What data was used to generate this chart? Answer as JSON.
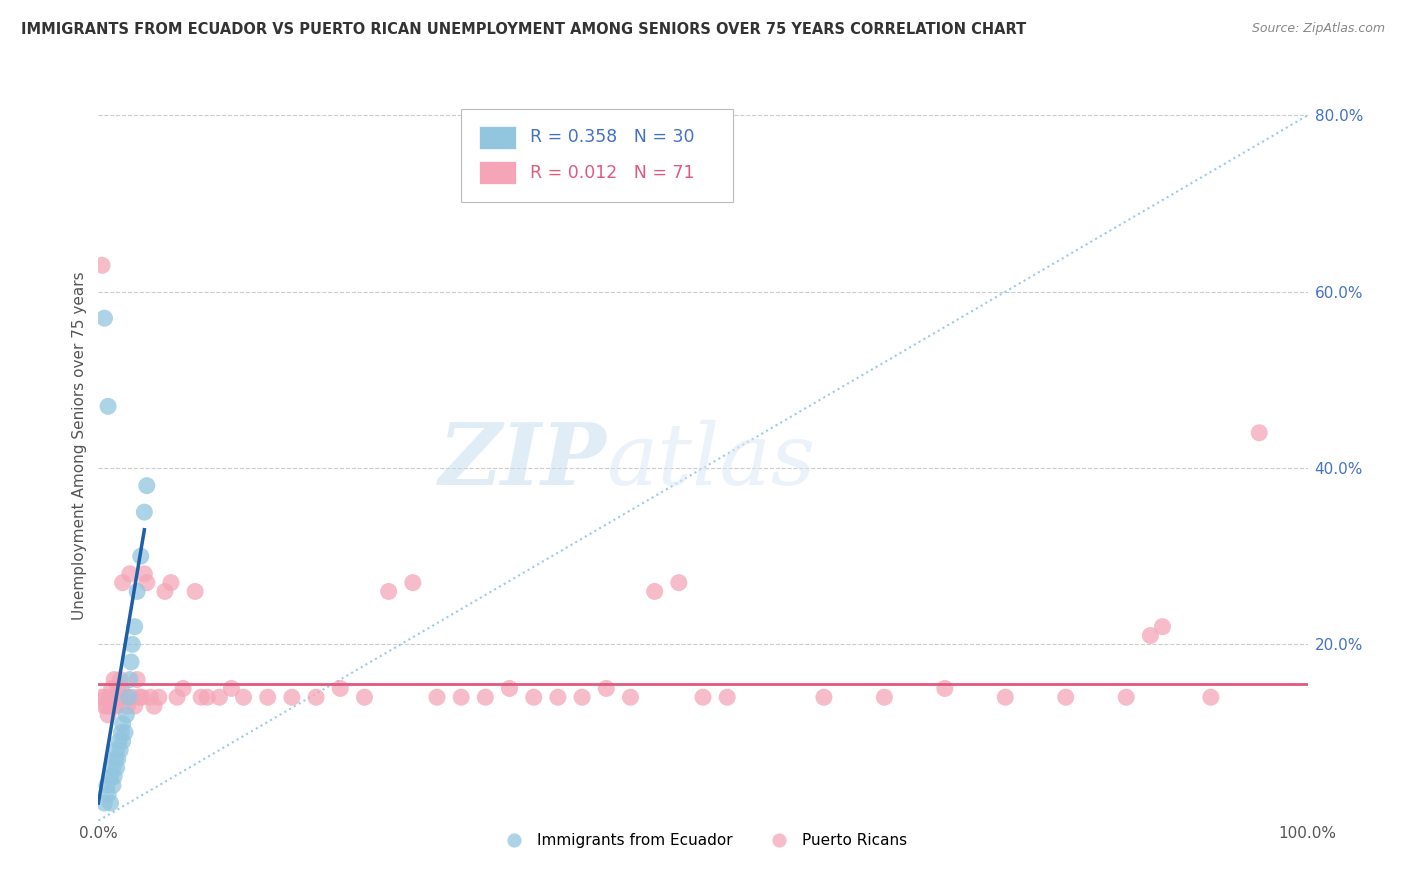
{
  "title": "IMMIGRANTS FROM ECUADOR VS PUERTO RICAN UNEMPLOYMENT AMONG SENIORS OVER 75 YEARS CORRELATION CHART",
  "source": "Source: ZipAtlas.com",
  "ylabel": "Unemployment Among Seniors over 75 years",
  "legend_blue_R": "0.358",
  "legend_blue_N": "30",
  "legend_pink_R": "0.012",
  "legend_pink_N": "71",
  "legend_blue_label": "Immigrants from Ecuador",
  "legend_pink_label": "Puerto Ricans",
  "blue_color": "#92c5de",
  "pink_color": "#f4a6b8",
  "blue_line_color": "#1f5fa6",
  "pink_line_color": "#e05a80",
  "diagonal_color": "#92c5de",
  "watermark_zip": "ZIP",
  "watermark_atlas": "atlas",
  "blue_dots": [
    [
      0.005,
      0.02
    ],
    [
      0.007,
      0.04
    ],
    [
      0.008,
      0.03
    ],
    [
      0.01,
      0.02
    ],
    [
      0.01,
      0.05
    ],
    [
      0.012,
      0.04
    ],
    [
      0.012,
      0.06
    ],
    [
      0.013,
      0.05
    ],
    [
      0.014,
      0.07
    ],
    [
      0.015,
      0.06
    ],
    [
      0.015,
      0.08
    ],
    [
      0.016,
      0.07
    ],
    [
      0.017,
      0.09
    ],
    [
      0.018,
      0.08
    ],
    [
      0.019,
      0.1
    ],
    [
      0.02,
      0.09
    ],
    [
      0.02,
      0.11
    ],
    [
      0.022,
      0.1
    ],
    [
      0.023,
      0.12
    ],
    [
      0.025,
      0.14
    ],
    [
      0.026,
      0.16
    ],
    [
      0.027,
      0.18
    ],
    [
      0.028,
      0.2
    ],
    [
      0.03,
      0.22
    ],
    [
      0.032,
      0.26
    ],
    [
      0.035,
      0.3
    ],
    [
      0.038,
      0.35
    ],
    [
      0.04,
      0.38
    ],
    [
      0.005,
      0.57
    ],
    [
      0.008,
      0.47
    ]
  ],
  "pink_dots": [
    [
      0.003,
      0.14
    ],
    [
      0.005,
      0.13
    ],
    [
      0.006,
      0.14
    ],
    [
      0.007,
      0.13
    ],
    [
      0.008,
      0.12
    ],
    [
      0.009,
      0.14
    ],
    [
      0.01,
      0.13
    ],
    [
      0.011,
      0.15
    ],
    [
      0.012,
      0.13
    ],
    [
      0.013,
      0.16
    ],
    [
      0.014,
      0.14
    ],
    [
      0.015,
      0.13
    ],
    [
      0.016,
      0.15
    ],
    [
      0.017,
      0.14
    ],
    [
      0.018,
      0.16
    ],
    [
      0.019,
      0.15
    ],
    [
      0.02,
      0.27
    ],
    [
      0.022,
      0.14
    ],
    [
      0.024,
      0.13
    ],
    [
      0.026,
      0.28
    ],
    [
      0.028,
      0.14
    ],
    [
      0.03,
      0.13
    ],
    [
      0.032,
      0.16
    ],
    [
      0.034,
      0.14
    ],
    [
      0.036,
      0.14
    ],
    [
      0.038,
      0.28
    ],
    [
      0.04,
      0.27
    ],
    [
      0.043,
      0.14
    ],
    [
      0.046,
      0.13
    ],
    [
      0.05,
      0.14
    ],
    [
      0.055,
      0.26
    ],
    [
      0.06,
      0.27
    ],
    [
      0.065,
      0.14
    ],
    [
      0.07,
      0.15
    ],
    [
      0.08,
      0.26
    ],
    [
      0.085,
      0.14
    ],
    [
      0.09,
      0.14
    ],
    [
      0.1,
      0.14
    ],
    [
      0.11,
      0.15
    ],
    [
      0.12,
      0.14
    ],
    [
      0.14,
      0.14
    ],
    [
      0.16,
      0.14
    ],
    [
      0.18,
      0.14
    ],
    [
      0.2,
      0.15
    ],
    [
      0.22,
      0.14
    ],
    [
      0.24,
      0.26
    ],
    [
      0.26,
      0.27
    ],
    [
      0.28,
      0.14
    ],
    [
      0.3,
      0.14
    ],
    [
      0.32,
      0.14
    ],
    [
      0.34,
      0.15
    ],
    [
      0.36,
      0.14
    ],
    [
      0.38,
      0.14
    ],
    [
      0.4,
      0.14
    ],
    [
      0.42,
      0.15
    ],
    [
      0.44,
      0.14
    ],
    [
      0.46,
      0.26
    ],
    [
      0.48,
      0.27
    ],
    [
      0.5,
      0.14
    ],
    [
      0.52,
      0.14
    ],
    [
      0.6,
      0.14
    ],
    [
      0.65,
      0.14
    ],
    [
      0.7,
      0.15
    ],
    [
      0.75,
      0.14
    ],
    [
      0.8,
      0.14
    ],
    [
      0.85,
      0.14
    ],
    [
      0.87,
      0.21
    ],
    [
      0.88,
      0.22
    ],
    [
      0.92,
      0.14
    ],
    [
      0.96,
      0.44
    ],
    [
      0.003,
      0.63
    ]
  ],
  "xlim": [
    0.0,
    1.0
  ],
  "ylim": [
    0.0,
    0.85
  ],
  "yticks": [
    0.0,
    0.2,
    0.4,
    0.6,
    0.8
  ],
  "ytick_labels_right": [
    "",
    "20.0%",
    "40.0%",
    "60.0%",
    "80.0%"
  ]
}
